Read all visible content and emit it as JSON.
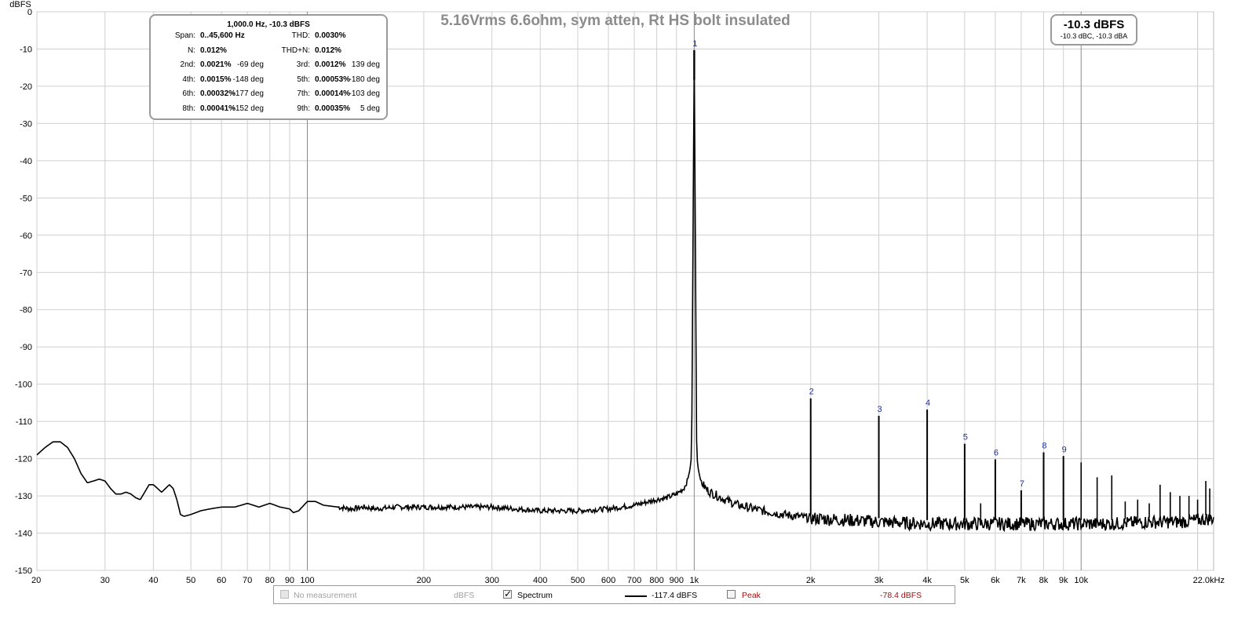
{
  "chart_data": {
    "type": "line",
    "title": "5.16Vrms 6.6ohm, sym atten, Rt HS bolt insulated",
    "ylabel": "dBFS",
    "xunit": "kHz",
    "xscale": "log",
    "xlim": [
      20,
      22000
    ],
    "ylim": [
      -150,
      0
    ],
    "grid": true,
    "yticks": [
      0,
      -10,
      -20,
      -30,
      -40,
      -50,
      -60,
      -70,
      -80,
      -90,
      -100,
      -110,
      -120,
      -130,
      -140,
      -150
    ],
    "xticks": [
      {
        "v": 20,
        "label": "20"
      },
      {
        "v": 30,
        "label": "30"
      },
      {
        "v": 40,
        "label": "40"
      },
      {
        "v": 50,
        "label": "50"
      },
      {
        "v": 60,
        "label": "60"
      },
      {
        "v": 70,
        "label": "70"
      },
      {
        "v": 80,
        "label": "80"
      },
      {
        "v": 90,
        "label": "90"
      },
      {
        "v": 100,
        "label": "100"
      },
      {
        "v": 200,
        "label": "200"
      },
      {
        "v": 300,
        "label": "300"
      },
      {
        "v": 400,
        "label": "400"
      },
      {
        "v": 500,
        "label": "500"
      },
      {
        "v": 600,
        "label": "600"
      },
      {
        "v": 700,
        "label": "700"
      },
      {
        "v": 800,
        "label": "800"
      },
      {
        "v": 900,
        "label": "900"
      },
      {
        "v": 1000,
        "label": "1k"
      },
      {
        "v": 2000,
        "label": "2k"
      },
      {
        "v": 3000,
        "label": "3k"
      },
      {
        "v": 4000,
        "label": "4k"
      },
      {
        "v": 5000,
        "label": "5k"
      },
      {
        "v": 6000,
        "label": "6k"
      },
      {
        "v": 7000,
        "label": "7k"
      },
      {
        "v": 8000,
        "label": "8k"
      },
      {
        "v": 9000,
        "label": "9k"
      },
      {
        "v": 10000,
        "label": "10k"
      },
      {
        "v": 22000,
        "label": "22.0kHz"
      }
    ],
    "major_gridlines_x": [
      100,
      1000,
      10000
    ],
    "series": [
      {
        "name": "Spectrum",
        "color": "#000000",
        "noise_floor": [
          [
            20,
            -119
          ],
          [
            21,
            -117
          ],
          [
            22,
            -115.5
          ],
          [
            23,
            -115.5
          ],
          [
            24,
            -117
          ],
          [
            25,
            -120
          ],
          [
            26,
            -124
          ],
          [
            27,
            -126.5
          ],
          [
            28,
            -126
          ],
          [
            29,
            -125.5
          ],
          [
            30,
            -126
          ],
          [
            31,
            -128
          ],
          [
            32,
            -129.5
          ],
          [
            33,
            -129.5
          ],
          [
            34,
            -129
          ],
          [
            35,
            -129.5
          ],
          [
            36,
            -130.5
          ],
          [
            37,
            -131
          ],
          [
            38,
            -129
          ],
          [
            39,
            -127
          ],
          [
            40,
            -127
          ],
          [
            41,
            -128
          ],
          [
            42,
            -129
          ],
          [
            43,
            -128
          ],
          [
            44,
            -127
          ],
          [
            45,
            -128
          ],
          [
            46,
            -131
          ],
          [
            47,
            -135
          ],
          [
            48,
            -135.5
          ],
          [
            50,
            -135
          ],
          [
            53,
            -134
          ],
          [
            56,
            -133.5
          ],
          [
            60,
            -133
          ],
          [
            65,
            -133
          ],
          [
            70,
            -132
          ],
          [
            75,
            -133
          ],
          [
            80,
            -132
          ],
          [
            85,
            -133
          ],
          [
            90,
            -133.5
          ],
          [
            92,
            -134.5
          ],
          [
            95,
            -134
          ],
          [
            100,
            -131.5
          ],
          [
            105,
            -131.5
          ],
          [
            110,
            -132.5
          ],
          [
            120,
            -133
          ],
          [
            130,
            -133.5
          ],
          [
            140,
            -133
          ],
          [
            150,
            -133.5
          ],
          [
            170,
            -133
          ],
          [
            200,
            -133
          ],
          [
            250,
            -133
          ],
          [
            300,
            -133
          ],
          [
            400,
            -134
          ],
          [
            500,
            -134
          ],
          [
            600,
            -133.5
          ],
          [
            700,
            -132.5
          ],
          [
            800,
            -131
          ],
          [
            850,
            -130.5
          ],
          [
            900,
            -129.5
          ],
          [
            940,
            -128
          ],
          [
            960,
            -126
          ],
          [
            975,
            -123
          ],
          [
            985,
            -119
          ],
          [
            1000,
            -10.3
          ],
          [
            1015,
            -119
          ],
          [
            1025,
            -123
          ],
          [
            1040,
            -126
          ],
          [
            1070,
            -128
          ],
          [
            1100,
            -129
          ],
          [
            1200,
            -131
          ],
          [
            1300,
            -132.5
          ],
          [
            1500,
            -134
          ],
          [
            1700,
            -135
          ],
          [
            2000,
            -136
          ],
          [
            2500,
            -136.5
          ],
          [
            3000,
            -137
          ],
          [
            4000,
            -137.5
          ],
          [
            5000,
            -137.5
          ],
          [
            6000,
            -137.5
          ],
          [
            8000,
            -137.5
          ],
          [
            10000,
            -137.5
          ],
          [
            12000,
            -137.5
          ],
          [
            15000,
            -137
          ],
          [
            18000,
            -137
          ],
          [
            20000,
            -136.5
          ],
          [
            22000,
            -136
          ]
        ],
        "harmonics": [
          {
            "label": "1",
            "f": 1000,
            "db": -10.3
          },
          {
            "label": "2",
            "f": 2000,
            "db": -103.8
          },
          {
            "label": "3",
            "f": 3000,
            "db": -108.5
          },
          {
            "label": "4",
            "f": 4000,
            "db": -106.8
          },
          {
            "label": "5",
            "f": 5000,
            "db": -116
          },
          {
            "label": "6",
            "f": 6000,
            "db": -120.2
          },
          {
            "label": "7",
            "f": 7000,
            "db": -128.5
          },
          {
            "label": "8",
            "f": 8000,
            "db": -118.3
          },
          {
            "label": "9",
            "f": 9000,
            "db": -119.3
          }
        ],
        "other_spurs": [
          {
            "f": 5500,
            "db": -132
          },
          {
            "f": 10000,
            "db": -121
          },
          {
            "f": 11000,
            "db": -125
          },
          {
            "f": 12000,
            "db": -124.5
          },
          {
            "f": 13000,
            "db": -131.5
          },
          {
            "f": 14000,
            "db": -131
          },
          {
            "f": 15000,
            "db": -132
          },
          {
            "f": 16000,
            "db": -127
          },
          {
            "f": 17000,
            "db": -129
          },
          {
            "f": 18000,
            "db": -130
          },
          {
            "f": 19000,
            "db": -130
          },
          {
            "f": 20000,
            "db": -131
          },
          {
            "f": 21000,
            "db": -126
          },
          {
            "f": 21500,
            "db": -128
          }
        ]
      }
    ]
  },
  "stats": {
    "header": "1,000.0 Hz, -10.3 dBFS",
    "rows": [
      [
        "Span:",
        "0..45,600 Hz",
        "",
        "THD:",
        "0.0030%",
        ""
      ],
      [
        "N:",
        "0.012%",
        "",
        "THD+N:",
        "0.012%",
        ""
      ],
      [
        "2nd:",
        "0.0021%",
        "-69 deg",
        "3rd:",
        "0.0012%",
        "139 deg"
      ],
      [
        "4th:",
        "0.0015%",
        "-148 deg",
        "5th:",
        "0.00053%",
        "-180 deg"
      ],
      [
        "6th:",
        "0.00032%",
        "-177 deg",
        "7th:",
        "0.00014%",
        "-103 deg"
      ],
      [
        "8th:",
        "0.00041%",
        "-152 deg",
        "9th:",
        "0.00035%",
        "5 deg"
      ]
    ]
  },
  "level": {
    "main": "-10.3 dBFS",
    "sub": "-10.3 dBC, -10.3 dBA"
  },
  "legend": {
    "no_measurement": "No measurement",
    "no_measurement_unit": "dBFS",
    "spectrum": "Spectrum",
    "spectrum_value": "-117.4 dBFS",
    "peak": "Peak",
    "peak_value": "-78.4 dBFS"
  }
}
